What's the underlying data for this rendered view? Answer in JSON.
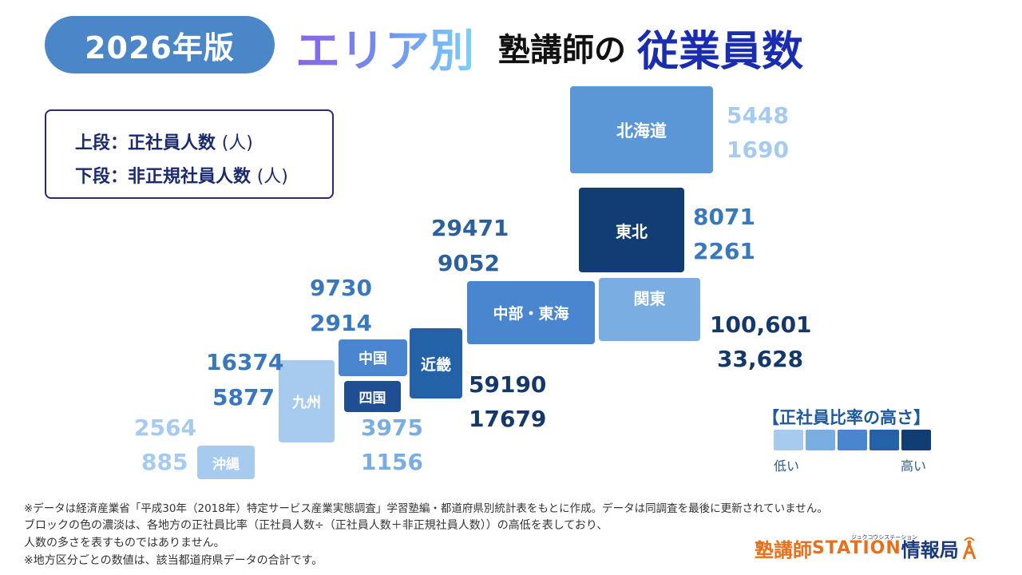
{
  "header": {
    "badge": "2026年版",
    "title_area": "エリア別",
    "title_mid": "塾講師の",
    "title_end": "従業員数"
  },
  "legend": {
    "line1_label": "上段：正社員人数",
    "line1_unit": "(人)",
    "line2_label": "下段：非正規社員人数",
    "line2_unit": "(人)"
  },
  "regions": {
    "hokkaido": {
      "name": "北海道",
      "full": "5448",
      "part": "1690",
      "color": "#5b97d6"
    },
    "tohoku": {
      "name": "東北",
      "full": "8071",
      "part": "2261",
      "color": "#123d74"
    },
    "kanto": {
      "name": "関東",
      "full": "100,601",
      "part": "33,628",
      "color": "#7aaee3"
    },
    "chubu": {
      "name": "中部・東海",
      "full": "29471",
      "part": "9052",
      "color": "#4a86cf"
    },
    "kinki": {
      "name": "近畿",
      "full": "59190",
      "part": "17679",
      "color": "#2462a8"
    },
    "chugoku": {
      "name": "中国",
      "full": "9730",
      "part": "2914",
      "color": "#4a86cf"
    },
    "shikoku": {
      "name": "四国",
      "full": "3975",
      "part": "1156",
      "color": "#1f4f92"
    },
    "kyushu": {
      "name": "九州",
      "full": "16374",
      "part": "5877",
      "color": "#a7caef"
    },
    "okinawa": {
      "name": "沖縄",
      "full": "2564",
      "part": "885",
      "color": "#a7caef"
    }
  },
  "scale": {
    "title": "【正社員比率の高さ】",
    "low": "低い",
    "high": "高い",
    "colors": [
      "#a7caef",
      "#7aaee3",
      "#4a86cf",
      "#2462a8",
      "#123d74"
    ]
  },
  "notes": {
    "n1": "※データは経済産業省「平成30年（2018年）特定サービス産業実態調査」学習塾編・都道府県別統計表をもとに作成。データは同調査を最後に更新されていません。",
    "n2": "ブロックの色の濃淡は、各地方の正社員比率（正社員人数÷（正社員人数＋非正規社員人数））の高低を表しており、",
    "n3": "人数の多さを表すものではありません。",
    "n4": "※地方区分ごとの数値は、該当都道府県データの合計です。"
  },
  "logo": {
    "part1": "塾講師",
    "part2": "STATION",
    "part3": "情報局",
    "sub": "ジュクコウシステーション"
  }
}
